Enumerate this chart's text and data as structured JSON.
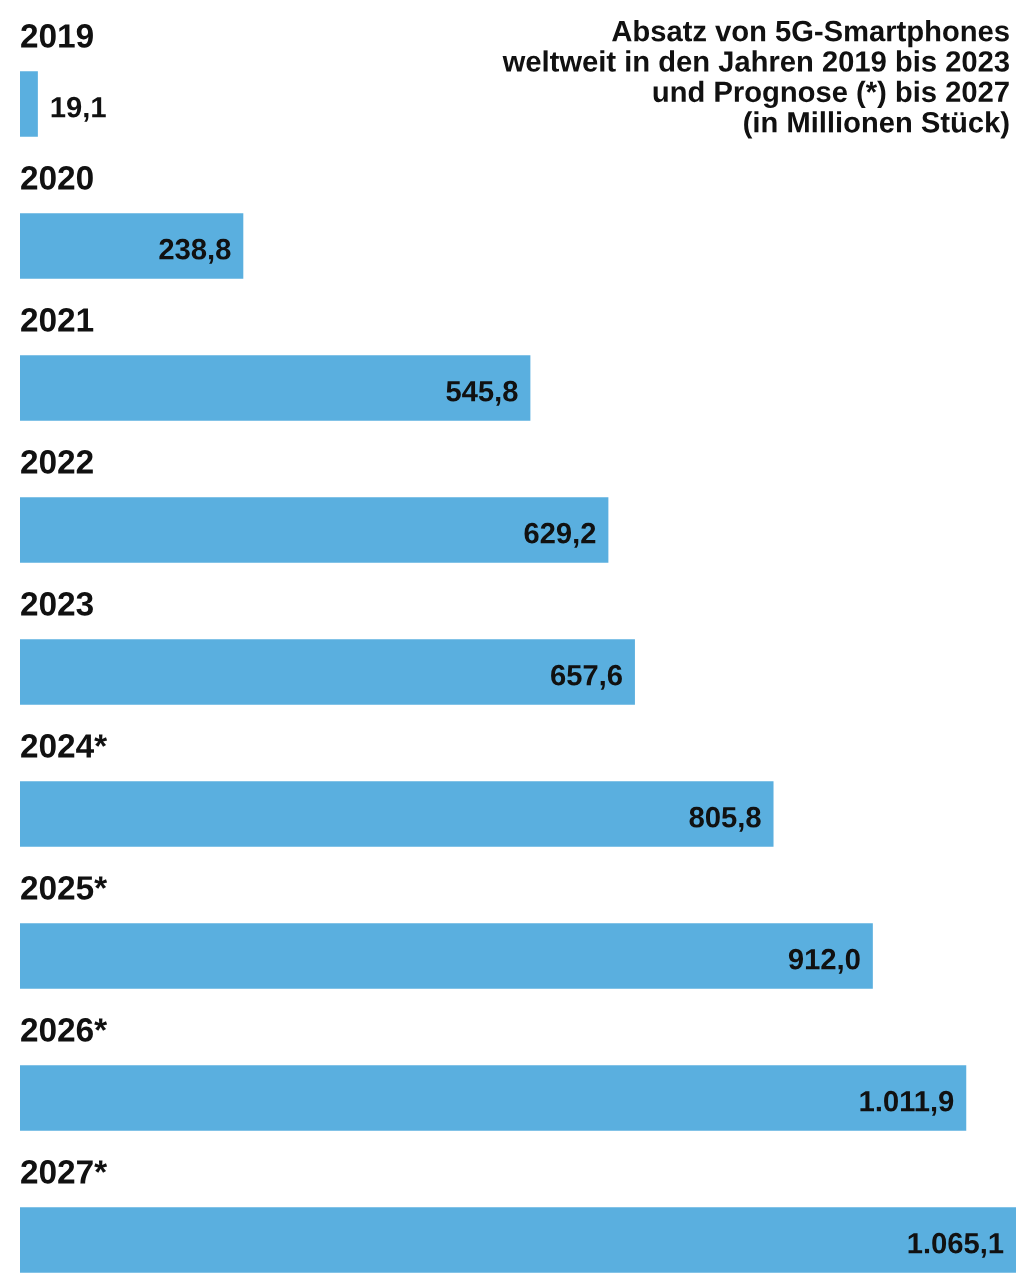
{
  "chart_data": {
    "type": "bar",
    "orientation": "horizontal",
    "title": "Absatz von 5G-Smartphones\nweltweit in den Jahren 2019 bis 2023\nund Prognose (*) bis 2027\n(in Millionen Stück)",
    "categories": [
      "2019",
      "2020",
      "2021",
      "2022",
      "2023",
      "2024*",
      "2025*",
      "2026*",
      "2027*"
    ],
    "values": [
      19.1,
      238.8,
      545.8,
      629.2,
      657.6,
      805.8,
      912.0,
      1011.9,
      1065.1
    ],
    "value_labels": [
      "19,1",
      "238,8",
      "545,8",
      "629,2",
      "657,6",
      "805,8",
      "912,0",
      "1.011,9",
      "1.065,1"
    ],
    "color": "#5aafdf",
    "legend": false
  }
}
